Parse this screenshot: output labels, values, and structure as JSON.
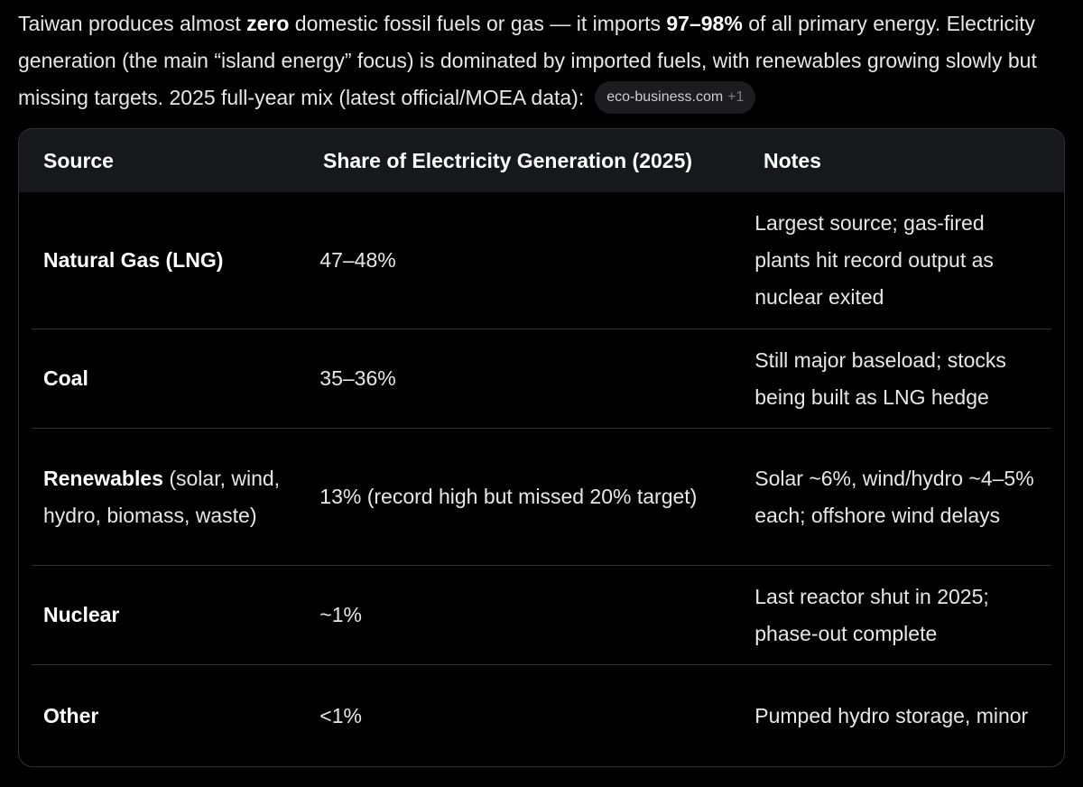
{
  "intro": {
    "p1": "Taiwan produces almost ",
    "p1_bold": "zero",
    "p2": " domestic fossil fuels or gas — it imports ",
    "p2_bold": "97–98%",
    "p3": " of all primary energy. Electricity generation (the main “island energy” focus) is dominated by imported fuels, with renewables growing slowly but missing targets. 2025 full-year mix (latest official/MOEA data):"
  },
  "citation": {
    "label": "eco-business.com",
    "extra": "+1"
  },
  "table": {
    "headers": [
      "Source",
      "Share of Electricity Generation (2025)",
      "Notes"
    ],
    "rows": [
      {
        "source": "Natural Gas (LNG)",
        "source_detail": "",
        "share": "47–48%",
        "notes": "Largest source; gas-fired plants hit record output as nuclear exited"
      },
      {
        "source": "Coal",
        "source_detail": "",
        "share": "35–36%",
        "notes": "Still major baseload; stocks being built as LNG hedge"
      },
      {
        "source": "Renewables",
        "source_detail": " (solar, wind, hydro, biomass, waste)",
        "share": "13% (record high but missed 20% target)",
        "notes": "Solar ~6%, wind/hydro ~4–5% each; offshore wind delays"
      },
      {
        "source": "Nuclear",
        "source_detail": "",
        "share": "~1%",
        "notes": "Last reactor shut in 2025; phase-out complete"
      },
      {
        "source": "Other",
        "source_detail": "",
        "share": "<1%",
        "notes": "Pumped hydro storage, minor"
      }
    ]
  },
  "colors": {
    "background": "#000000",
    "header_bg": "#16181c",
    "border": "#2f3336",
    "text": "#e7e7e7",
    "chip_bg": "#1c1c1e"
  }
}
